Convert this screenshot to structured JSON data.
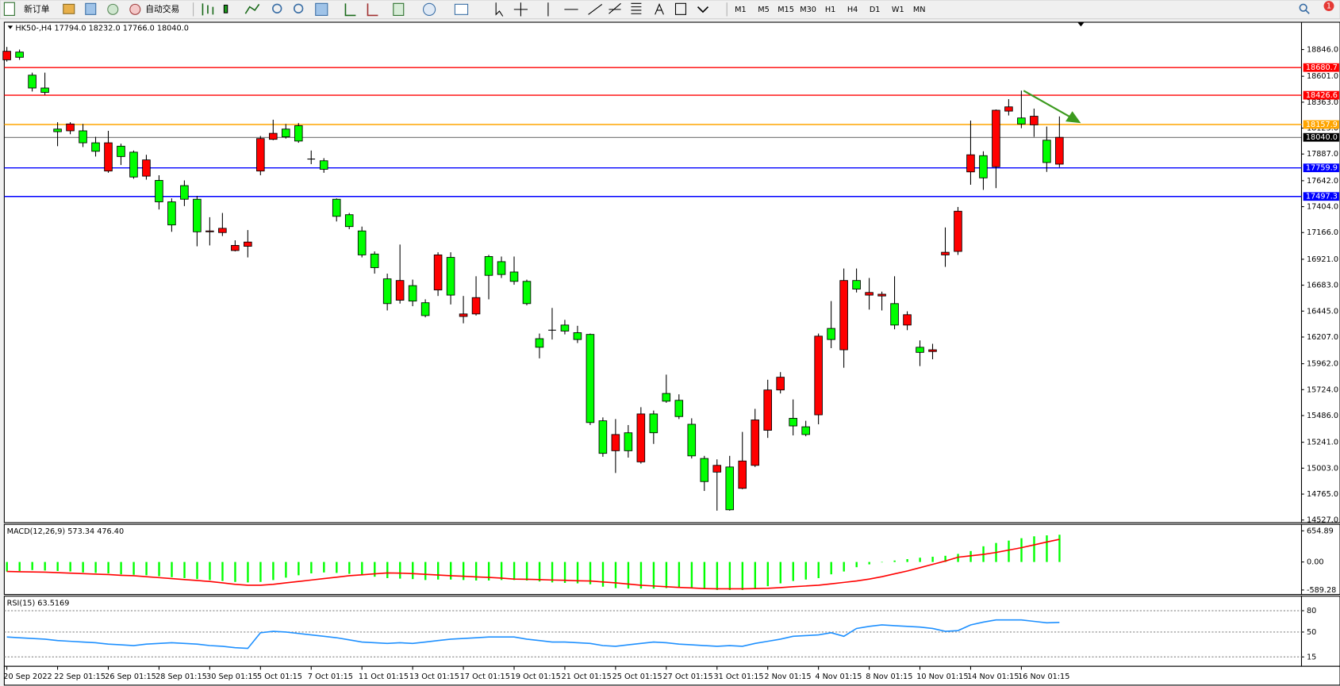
{
  "toolbar": {
    "new_order": "新订单",
    "auto_trading": "自动交易",
    "timeframes": [
      "M1",
      "M5",
      "M15",
      "M30",
      "H1",
      "H4",
      "D1",
      "W1",
      "MN"
    ],
    "notifications": "1"
  },
  "chart_data": [
    {
      "type": "candlestick",
      "title": "HK50-,H4 17794.0 18232.0 17766.0 18040.0",
      "categories": [
        "20 Sep 2022",
        null,
        null,
        null,
        "22 Sep 01:15",
        null,
        null,
        null,
        "26 Sep 01:15",
        null,
        null,
        null,
        "28 Sep 01:15",
        null,
        null,
        null,
        "30 Sep 01:15",
        null,
        null,
        null,
        "5 Oct 01:15",
        null,
        null,
        null,
        "7 Oct 01:15",
        null,
        null,
        null,
        "11 Oct 01:15",
        null,
        null,
        null,
        "13 Oct 01:15",
        null,
        null,
        null,
        "17 Oct 01:15",
        null,
        null,
        null,
        "19 Oct 01:15",
        null,
        null,
        null,
        "21 Oct 01:15",
        null,
        null,
        null,
        "25 Oct 01:15",
        null,
        null,
        null,
        "27 Oct 01:15",
        null,
        null,
        null,
        "31 Oct 01:15",
        null,
        null,
        null,
        "2 Nov 01:15",
        null,
        null,
        null,
        "4 Nov 01:15",
        null,
        null,
        null,
        "8 Nov 01:15",
        null,
        null,
        null,
        "10 Nov 01:15",
        null,
        null,
        null,
        "14 Nov 01:15",
        null,
        null,
        null,
        "16 Nov 01:15",
        null,
        null,
        null
      ],
      "open": [
        18752,
        18823,
        18611,
        18493,
        18116,
        18100,
        18100,
        17990,
        17731,
        17959,
        17904,
        17684,
        17645,
        17448,
        17597,
        17472,
        17173,
        17166,
        17001,
        17040,
        17731,
        18022,
        18116,
        18147,
        17841,
        17825,
        17472,
        17330,
        17181,
        16969,
        16741,
        16545,
        16679,
        16522,
        16639,
        16938,
        16396,
        16419,
        16946,
        16899,
        16804,
        16718,
        16192,
        16270,
        16317,
        16247,
        16231,
        15438,
        15163,
        15328,
        15061,
        15501,
        15689,
        15626,
        15406,
        15092,
        14967,
        15014,
        14818,
        15029,
        15351,
        15721,
        15461,
        15383,
        15493,
        16286,
        16090,
        16726,
        16592,
        16584,
        16514,
        16317,
        16113,
        16074,
        16961,
        16993,
        17723,
        17872,
        17770,
        18281,
        18218,
        18155,
        18014,
        17794
      ],
      "high": [
        18870,
        18846,
        18634,
        18634,
        18179,
        18179,
        18163,
        18045,
        18100,
        17982,
        17919,
        17880,
        17692,
        17480,
        17645,
        17503,
        17307,
        17346,
        17095,
        17189,
        18053,
        18202,
        18163,
        18171,
        17919,
        17849,
        17480,
        17346,
        17221,
        16993,
        16789,
        17056,
        16734,
        16553,
        16985,
        16985,
        16584,
        16765,
        16961,
        16946,
        16946,
        16734,
        16239,
        16474,
        16365,
        16310,
        16239,
        15469,
        15454,
        15399,
        15563,
        15532,
        15862,
        15681,
        15461,
        15116,
        15084,
        15116,
        15336,
        15548,
        15815,
        15885,
        15634,
        15438,
        16239,
        16537,
        16836,
        16836,
        16749,
        16624,
        16765,
        16443,
        16176,
        16145,
        17213,
        17401,
        18194,
        17912,
        18296,
        18391,
        18469,
        18304,
        18139,
        18232
      ],
      "low": [
        18736,
        18752,
        18461,
        18430,
        17959,
        18069,
        17951,
        17864,
        17715,
        17786,
        17660,
        17652,
        17378,
        17173,
        17409,
        17040,
        17048,
        17134,
        16993,
        16938,
        17692,
        18014,
        18029,
        17990,
        17794,
        17715,
        17268,
        17197,
        16938,
        16789,
        16451,
        16514,
        16490,
        16388,
        16584,
        16506,
        16333,
        16404,
        16553,
        16749,
        16687,
        16498,
        16011,
        16184,
        16231,
        16152,
        15399,
        15108,
        14959,
        15100,
        15045,
        15226,
        15603,
        15454,
        15092,
        14794,
        14613,
        14613,
        14810,
        15014,
        15281,
        15689,
        15304,
        15296,
        15406,
        16105,
        15925,
        16616,
        16459,
        16451,
        16278,
        16270,
        15940,
        16003,
        16851,
        16961,
        17605,
        17558,
        17574,
        18241,
        18124,
        18045,
        17723,
        17766
      ],
      "close": [
        18830,
        18775,
        18493,
        18453,
        18092,
        18163,
        17990,
        17912,
        17990,
        17864,
        17676,
        17833,
        17448,
        17236,
        17472,
        17173,
        17181,
        17205,
        17048,
        17079,
        18029,
        18077,
        18045,
        18006,
        17841,
        17747,
        17315,
        17221,
        16961,
        16844,
        16514,
        16726,
        16537,
        16404,
        16961,
        16592,
        16419,
        16569,
        16773,
        16781,
        16718,
        16514,
        16113,
        16270,
        16262,
        16184,
        15422,
        15139,
        15312,
        15163,
        15501,
        15328,
        15618,
        15477,
        15116,
        14880,
        15029,
        14621,
        15069,
        15446,
        15721,
        15838,
        15391,
        15312,
        16215,
        16184,
        16726,
        16647,
        16616,
        16600,
        16317,
        16412,
        16066,
        16090,
        16985,
        17362,
        17880,
        17668,
        18289,
        18320,
        18163,
        18234,
        17809,
        18040
      ],
      "up_color": "#ff0000",
      "down_color": "#00ff00",
      "ylim": [
        14511,
        19089
      ],
      "yticks": [
        {
          "value": 18846,
          "label": "18846.0"
        },
        {
          "value": 18601,
          "label": "18601.0"
        },
        {
          "value": 18363,
          "label": "18363.0"
        },
        {
          "value": 18125,
          "label": "18125.0"
        },
        {
          "value": 17887,
          "label": "17887.0"
        },
        {
          "value": 17642,
          "label": "17642.0"
        },
        {
          "value": 17404,
          "label": "17404.0"
        },
        {
          "value": 17166,
          "label": "17166.0"
        },
        {
          "value": 16921,
          "label": "16921.0"
        },
        {
          "value": 16683,
          "label": "16683.0"
        },
        {
          "value": 16445,
          "label": "16445.0"
        },
        {
          "value": 16207,
          "label": "16207.0"
        },
        {
          "value": 15962,
          "label": "15962.0"
        },
        {
          "value": 15724,
          "label": "15724.0"
        },
        {
          "value": 15486,
          "label": "15486.0"
        },
        {
          "value": 15241,
          "label": "15241.0"
        },
        {
          "value": 15003,
          "label": "15003.0"
        },
        {
          "value": 14765,
          "label": "14765.0"
        },
        {
          "value": 14527,
          "label": "14527.0"
        }
      ],
      "lines": [
        {
          "value": 18680.7,
          "color": "#ff0000"
        },
        {
          "value": 18426.6,
          "color": "#ff0000"
        },
        {
          "value": 18157.9,
          "color": "#ffa500"
        },
        {
          "value": 18040,
          "label": "18040.0",
          "color": "#000000"
        },
        {
          "value": 17759.9,
          "color": "#0000ff"
        },
        {
          "value": 17497.3,
          "color": "#0000ff"
        }
      ]
    },
    {
      "type": "macd",
      "title": "MACD(12,26,9) 573.34 476.40",
      "ylim": [
        -666,
        774
      ],
      "yticks": [
        654.89,
        {
          "value": 0,
          "label": "0.00"
        },
        -589.28
      ],
      "series": [
        {
          "type": "bar",
          "color": "#00ff00",
          "values": [
            -200,
            -190,
            -170,
            -180,
            -190,
            -200,
            -220,
            -230,
            -240,
            -260,
            -270,
            -280,
            -300,
            -320,
            -340,
            -360,
            -380,
            -400,
            -420,
            -430,
            -420,
            -380,
            -330,
            -280,
            -240,
            -220,
            -230,
            -250,
            -280,
            -310,
            -340,
            -350,
            -360,
            -380,
            -370,
            -370,
            -380,
            -390,
            -390,
            -380,
            -380,
            -390,
            -410,
            -430,
            -440,
            -450,
            -470,
            -520,
            -550,
            -560,
            -560,
            -560,
            -550,
            -540,
            -550,
            -570,
            -590,
            -590,
            -590,
            -560,
            -510,
            -450,
            -400,
            -370,
            -340,
            -260,
            -200,
            -110,
            -50,
            0,
            30,
            60,
            90,
            110,
            130,
            170,
            230,
            330,
            400,
            450,
            500,
            540,
            560,
            573.34
          ]
        },
        {
          "type": "line",
          "color": "#ff0000",
          "values": [
            -200,
            -205,
            -210,
            -215,
            -225,
            -235,
            -245,
            -255,
            -265,
            -280,
            -290,
            -310,
            -330,
            -350,
            -370,
            -390,
            -410,
            -440,
            -470,
            -490,
            -490,
            -470,
            -440,
            -410,
            -380,
            -350,
            -320,
            -290,
            -270,
            -250,
            -230,
            -235,
            -245,
            -260,
            -275,
            -290,
            -300,
            -315,
            -325,
            -340,
            -360,
            -365,
            -370,
            -380,
            -385,
            -395,
            -400,
            -420,
            -440,
            -465,
            -490,
            -505,
            -520,
            -535,
            -545,
            -560,
            -565,
            -565,
            -565,
            -560,
            -555,
            -540,
            -520,
            -505,
            -490,
            -460,
            -430,
            -400,
            -360,
            -310,
            -250,
            -190,
            -120,
            -50,
            20,
            100,
            130,
            160,
            200,
            250,
            300,
            360,
            420,
            476.4
          ]
        }
      ]
    },
    {
      "type": "line",
      "title": "RSI(15) 63.5169",
      "ylim": [
        3,
        99.2
      ],
      "yticks": [
        80,
        50,
        15
      ],
      "grid": true,
      "series": [
        {
          "color": "#1e90ff",
          "values": [
            43,
            42,
            41,
            40,
            38,
            37,
            36,
            35,
            33,
            32,
            31,
            33,
            34,
            35,
            34,
            33,
            31,
            30,
            28,
            27,
            49,
            51,
            50,
            48,
            46,
            44,
            42,
            39,
            36,
            35,
            34,
            35,
            34,
            36,
            38,
            40,
            41,
            42,
            43,
            43,
            43,
            40,
            38,
            36,
            36,
            35,
            34,
            31,
            30,
            32,
            34,
            36,
            35,
            33,
            32,
            31,
            30,
            31,
            30,
            34,
            37,
            40,
            44,
            45,
            46,
            49,
            44,
            55,
            58,
            60,
            59,
            58,
            57,
            55,
            51,
            52,
            60,
            64,
            67,
            67,
            67,
            65,
            63,
            63.5169
          ]
        }
      ]
    }
  ]
}
